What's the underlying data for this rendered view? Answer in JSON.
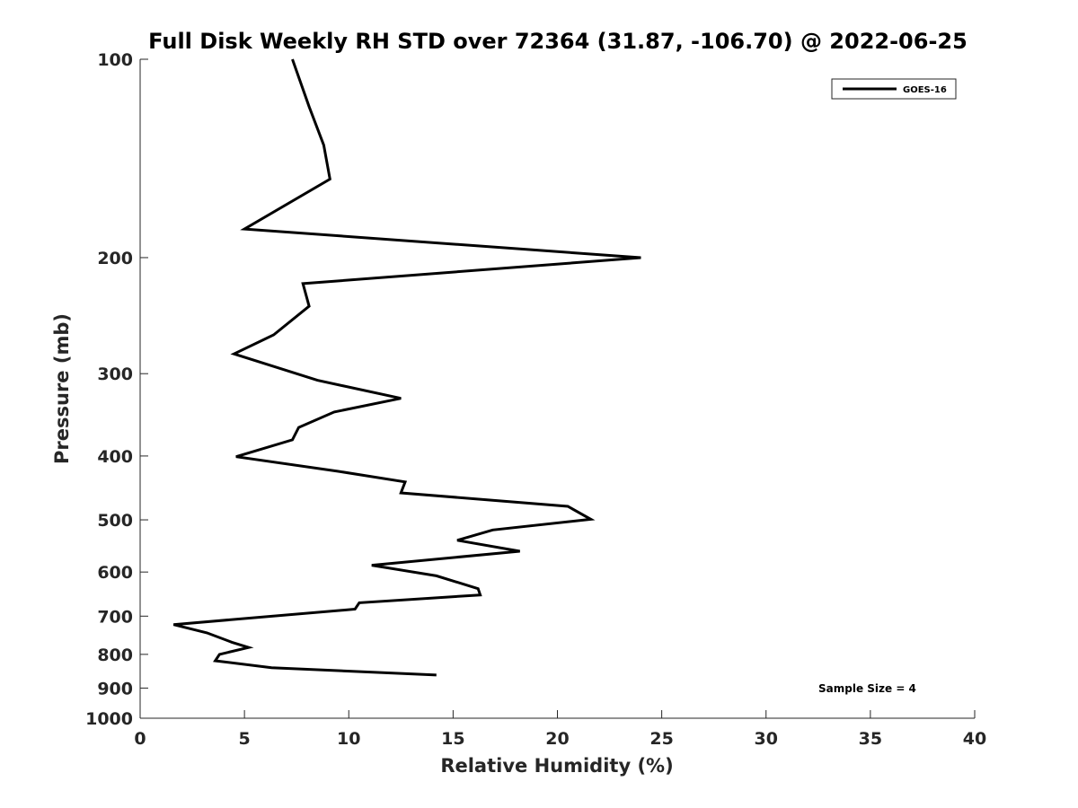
{
  "chart_data": {
    "type": "line",
    "title": "Full Disk Weekly RH STD over 72364 (31.87, -106.70) @ 2022-06-25",
    "xlabel": "Relative Humidity (%)",
    "ylabel": "Pressure (mb)",
    "xlim": [
      0,
      40
    ],
    "ylim": [
      100,
      1000
    ],
    "y_scale": "log",
    "y_reversed": true,
    "grid": false,
    "legend_position": "top-right",
    "x_ticks": [
      "0",
      "5",
      "10",
      "15",
      "20",
      "25",
      "30",
      "35",
      "40"
    ],
    "y_ticks": [
      "100",
      "200",
      "300",
      "400",
      "500",
      "600",
      "700",
      "800",
      "900",
      "1000"
    ],
    "annotation": "Sample Size = 4",
    "series": [
      {
        "name": "GOES-16",
        "color": "#000000",
        "points": [
          {
            "x": 7.3,
            "y": 100
          },
          {
            "x": 8.1,
            "y": 118
          },
          {
            "x": 8.8,
            "y": 135
          },
          {
            "x": 9.1,
            "y": 152
          },
          {
            "x": 5.0,
            "y": 181
          },
          {
            "x": 24.0,
            "y": 200
          },
          {
            "x": 7.8,
            "y": 219
          },
          {
            "x": 8.1,
            "y": 237
          },
          {
            "x": 6.4,
            "y": 262
          },
          {
            "x": 4.5,
            "y": 280
          },
          {
            "x": 8.5,
            "y": 307
          },
          {
            "x": 12.5,
            "y": 327
          },
          {
            "x": 9.3,
            "y": 343
          },
          {
            "x": 7.6,
            "y": 362
          },
          {
            "x": 7.3,
            "y": 378
          },
          {
            "x": 4.6,
            "y": 401
          },
          {
            "x": 9.5,
            "y": 422
          },
          {
            "x": 12.7,
            "y": 438
          },
          {
            "x": 12.5,
            "y": 455
          },
          {
            "x": 20.5,
            "y": 477
          },
          {
            "x": 21.6,
            "y": 499
          },
          {
            "x": 16.9,
            "y": 518
          },
          {
            "x": 15.2,
            "y": 537
          },
          {
            "x": 18.2,
            "y": 558
          },
          {
            "x": 11.1,
            "y": 586
          },
          {
            "x": 14.2,
            "y": 608
          },
          {
            "x": 16.2,
            "y": 636
          },
          {
            "x": 16.3,
            "y": 650
          },
          {
            "x": 10.5,
            "y": 668
          },
          {
            "x": 10.3,
            "y": 683
          },
          {
            "x": 1.6,
            "y": 721
          },
          {
            "x": 3.2,
            "y": 742
          },
          {
            "x": 4.4,
            "y": 767
          },
          {
            "x": 5.2,
            "y": 781
          },
          {
            "x": 3.8,
            "y": 800
          },
          {
            "x": 3.6,
            "y": 818
          },
          {
            "x": 6.3,
            "y": 838
          },
          {
            "x": 14.2,
            "y": 860
          }
        ]
      }
    ]
  }
}
